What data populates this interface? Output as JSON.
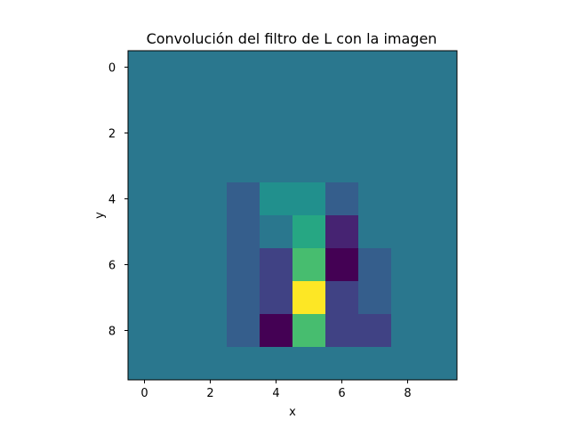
{
  "chart_data": {
    "type": "heatmap",
    "title": "Convolución del filtro de L con la imagen",
    "xlabel": "x",
    "ylabel": "y",
    "xlim": [
      -0.5,
      9.5
    ],
    "ylim": [
      9.5,
      -0.5
    ],
    "xticks": [
      0,
      2,
      4,
      6,
      8
    ],
    "yticks": [
      0,
      2,
      4,
      6,
      8
    ],
    "grid": false,
    "colormap": "viridis",
    "value_range": [
      -4,
      6
    ],
    "z": [
      [
        0,
        0,
        0,
        0,
        0,
        0,
        0,
        0,
        0,
        0
      ],
      [
        0,
        0,
        0,
        0,
        0,
        0,
        0,
        0,
        0,
        0
      ],
      [
        0,
        0,
        0,
        0,
        0,
        0,
        0,
        0,
        0,
        0
      ],
      [
        0,
        0,
        0,
        0,
        0,
        0,
        0,
        0,
        0,
        0
      ],
      [
        0,
        0,
        0,
        -1,
        1,
        1,
        -1,
        0,
        0,
        0
      ],
      [
        0,
        0,
        0,
        -1,
        0,
        2,
        -3,
        0,
        0,
        0
      ],
      [
        0,
        0,
        0,
        -1,
        -2,
        3,
        -4,
        -1,
        0,
        0
      ],
      [
        0,
        0,
        0,
        -1,
        -2,
        6,
        -2,
        -1,
        0,
        0
      ],
      [
        0,
        0,
        0,
        -1,
        -4,
        3,
        -2,
        -2,
        0,
        0
      ],
      [
        0,
        0,
        0,
        0,
        0,
        0,
        0,
        0,
        0,
        0
      ]
    ]
  }
}
